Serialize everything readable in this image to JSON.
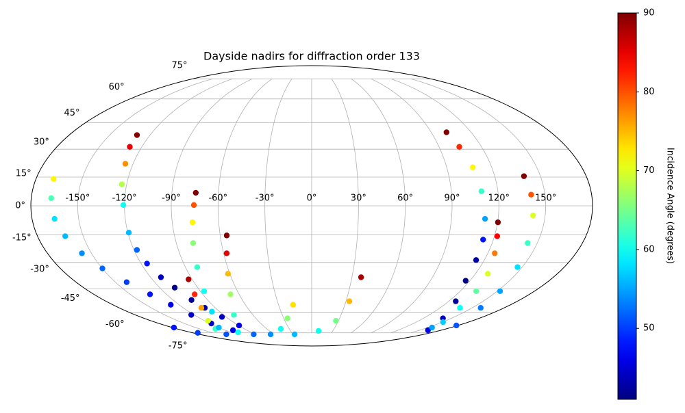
{
  "chart_data": {
    "type": "scatter",
    "projection": "mollweide",
    "title": "Dayside nadirs for diffraction order 133",
    "grid": true,
    "colormap": "jet",
    "xlim": [
      -180,
      180
    ],
    "ylim": [
      -90,
      90
    ],
    "xticks": [
      {
        "value": -150,
        "label": "-150°"
      },
      {
        "value": -120,
        "label": "-120°"
      },
      {
        "value": -90,
        "label": "-90°"
      },
      {
        "value": -60,
        "label": "-60°"
      },
      {
        "value": -30,
        "label": "-30°"
      },
      {
        "value": 0,
        "label": "0°"
      },
      {
        "value": 30,
        "label": "30°"
      },
      {
        "value": 60,
        "label": "60°"
      },
      {
        "value": 90,
        "label": "90°"
      },
      {
        "value": 120,
        "label": "120°"
      },
      {
        "value": 150,
        "label": "150°"
      }
    ],
    "yticks": [
      {
        "value": -75,
        "label": "-75°"
      },
      {
        "value": -60,
        "label": "-60°"
      },
      {
        "value": -45,
        "label": "-45°"
      },
      {
        "value": -30,
        "label": "-30°"
      },
      {
        "value": -15,
        "label": "-15°"
      },
      {
        "value": 0,
        "label": "0°"
      },
      {
        "value": 15,
        "label": "15°"
      },
      {
        "value": 30,
        "label": "30°"
      },
      {
        "value": 45,
        "label": "45°"
      },
      {
        "value": 60,
        "label": "60°"
      },
      {
        "value": 75,
        "label": "75°"
      }
    ],
    "colorbar": {
      "label": "Incidence Angle (degrees)",
      "clim": [
        41,
        90
      ],
      "ticks": [
        50,
        60,
        70,
        80,
        90
      ]
    },
    "series": [
      {
        "x": [
          -178,
          -172.5,
          -137,
          -93
        ],
        "y": [
          -70.7,
          -75.0,
          -76.3,
          -76.3
        ],
        "values": [
          48,
          50,
          51,
          52
        ]
      },
      {
        "x": [
          -168.5,
          -167.2,
          -165.5,
          -161.8,
          -156.5,
          -149.9,
          -141.4,
          -133.6,
          -127.5,
          -122.9,
          -118.3,
          -109.3
        ],
        "y": [
          14.0,
          4.0,
          -6.8,
          -15.9,
          -25.0,
          -33.3,
          -41.1,
          -48.3,
          -54.8,
          -61.5,
          -67.6,
          -72.8
        ],
        "values": [
          72,
          63,
          58,
          56,
          54,
          52,
          50,
          48,
          46,
          45,
          45,
          46
        ]
      },
      {
        "x": [
          -129.7,
          -128.5,
          -125.2,
          -123.1,
          -120.7,
          -119.4,
          -118.0,
          -115.8,
          -112.3,
          -108.1,
          -104.0,
          -99.9,
          -94.3,
          -89.3
        ],
        "y": [
          37.9,
          31.3,
          22.1,
          11.2,
          0.4,
          -14.0,
          -23.2,
          -30.6,
          -38.3,
          -44.3,
          -51.8,
          -56.8,
          -62.9,
          -69.1
        ],
        "values": [
          90,
          85,
          77,
          68,
          60,
          56,
          52,
          48,
          44,
          42,
          42,
          43,
          44,
          46
        ]
      },
      {
        "x": [
          -92.7,
          -96.7,
          -103.1,
          -116.0,
          -128.6
        ],
        "y": [
          -39.5,
          -48.3,
          -56.8,
          -65.6,
          -71.7
        ],
        "values": [
          88,
          82,
          76,
          70,
          62
        ]
      },
      {
        "x": [
          -74.6,
          -75.5,
          -76.9,
          -78.8,
          -81.6,
          -86.9,
          -97.5,
          -120.0
        ],
        "y": [
          6.8,
          0.4,
          -8.6,
          -19.5,
          -32.6,
          -46.4,
          -59.3,
          -70.7
        ],
        "values": [
          90,
          80,
          72,
          66,
          62,
          60,
          58,
          56
        ]
      },
      {
        "x": [
          -55.7,
          -57.9,
          -61.3,
          -67.1,
          -79.4,
          -109.2
        ],
        "y": [
          -15.5,
          -25.0,
          -36.3,
          -48.3,
          -61.5,
          -74.5
        ],
        "values": [
          90,
          85,
          75,
          67,
          62,
          60
        ]
      },
      {
        "x": [
          -16.8,
          -26.0,
          -41.3
        ],
        "y": [
          -54.8,
          -63.9,
          -71.7
        ],
        "values": [
          73,
          66,
          60
        ]
      },
      {
        "x": [
          -65.9,
          -27.4,
          9.7,
          27.1,
          33.0,
          36.8
        ],
        "y": [
          -76.3,
          -76.3,
          -73.4,
          -65.6,
          -52.6,
          -38.3
        ],
        "values": [
          54,
          56,
          60,
          65,
          75,
          88
        ]
      },
      {
        "x": [
          101.5,
          104.3,
          107.4,
          109.4,
          111.6,
          113.2,
          114.3,
          116.8,
          126.1,
          141.1,
          161.5
        ],
        "y": [
          39.5,
          31.3,
          20.2,
          7.6,
          -6.8,
          -17.7,
          -28.7,
          -40.3,
          -52.6,
          -63.9,
          -72.8
        ],
        "values": [
          90,
          82,
          72,
          62,
          55,
          48,
          43,
          41,
          42,
          44,
          46
        ]
      },
      {
        "x": [
          120.2,
          121.8,
          124.7,
          129.1,
          132.9,
          138.6,
          150.8,
          155.5
        ],
        "y": [
          -8.6,
          -15.9,
          -25.0,
          -36.3,
          -46.4,
          -56.8,
          -66.6,
          -70.7
        ],
        "values": [
          90,
          84,
          78,
          70,
          64,
          60,
          57,
          55
        ]
      },
      {
        "x": [
          139.2,
          141.1,
          142.2,
          143.6,
          146.7,
          152.2,
          158.0,
          178.0
        ],
        "y": [
          15.5,
          5.8,
          -5.0,
          -19.5,
          -32.6,
          -46.4,
          -56.8,
          -69.1
        ],
        "values": [
          90,
          80,
          70,
          62,
          58,
          55,
          53,
          51
        ]
      }
    ]
  }
}
